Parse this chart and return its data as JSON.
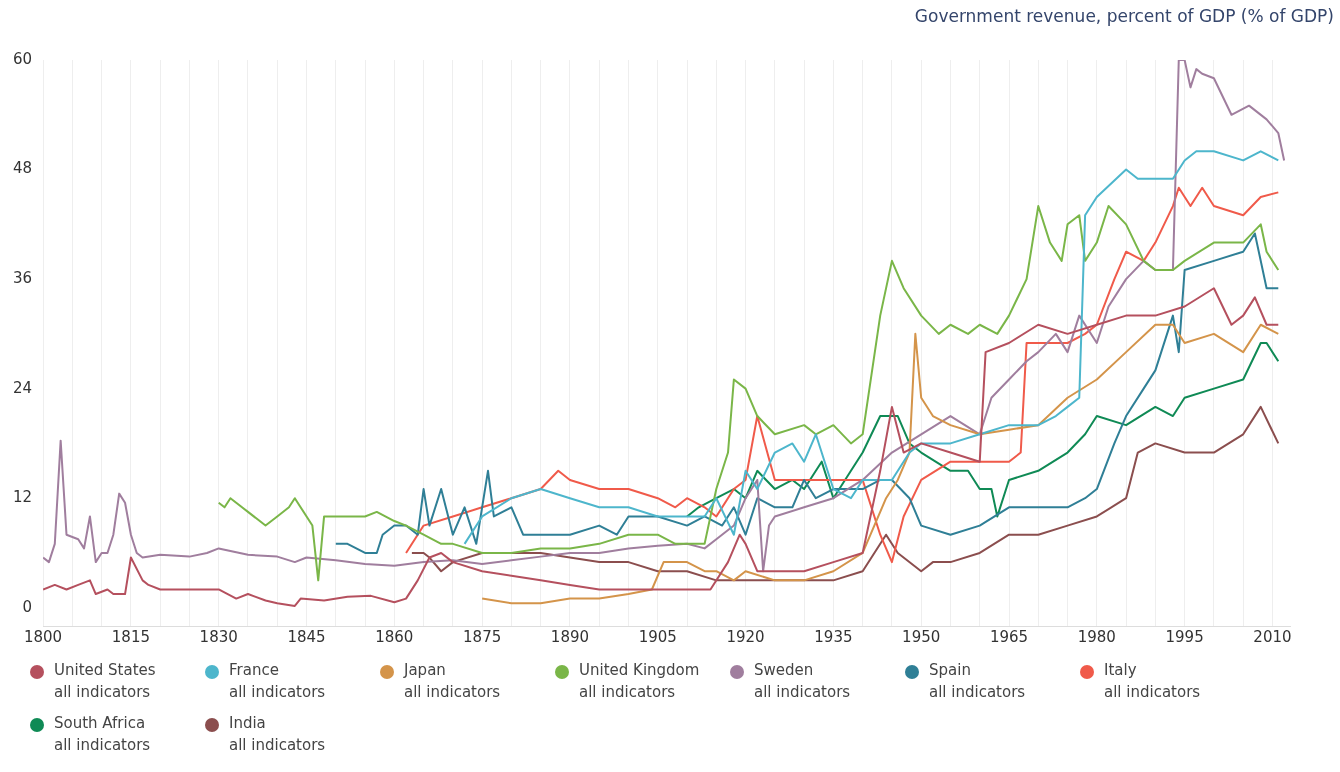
{
  "chart_data": {
    "type": "line",
    "title": "Government revenue, percent of GDP (% of GDP)",
    "xlim": [
      1800,
      2013
    ],
    "ylim": [
      -2,
      60
    ],
    "xticks": [
      1800,
      {
        "value": 1805,
        "label": null
      },
      {
        "value": 1810,
        "label": null
      },
      1815,
      {
        "value": 1820,
        "label": null
      },
      {
        "value": 1825,
        "label": null
      },
      1830,
      {
        "value": 1835,
        "label": null
      },
      {
        "value": 1840,
        "label": null
      },
      1845,
      {
        "value": 1850,
        "label": null
      },
      {
        "value": 1855,
        "label": null
      },
      1860,
      {
        "value": 1865,
        "label": null
      },
      {
        "value": 1870,
        "label": null
      },
      1875,
      {
        "value": 1880,
        "label": null
      },
      {
        "value": 1885,
        "label": null
      },
      1890,
      {
        "value": 1895,
        "label": null
      },
      {
        "value": 1900,
        "label": null
      },
      1905,
      {
        "value": 1910,
        "label": null
      },
      {
        "value": 1915,
        "label": null
      },
      1920,
      {
        "value": 1925,
        "label": null
      },
      {
        "value": 1930,
        "label": null
      },
      1935,
      {
        "value": 1940,
        "label": null
      },
      {
        "value": 1945,
        "label": null
      },
      1950,
      {
        "value": 1955,
        "label": null
      },
      {
        "value": 1960,
        "label": null
      },
      1965,
      {
        "value": 1970,
        "label": null
      },
      {
        "value": 1975,
        "label": null
      },
      1980,
      {
        "value": 1985,
        "label": null
      },
      {
        "value": 1990,
        "label": null
      },
      1995,
      {
        "value": 2000,
        "label": null
      },
      {
        "value": 2005,
        "label": null
      },
      2010
    ],
    "yticks": [
      0,
      12,
      24,
      36,
      48,
      60
    ],
    "grid": "x",
    "legend": "bottom",
    "series": [
      {
        "name": "United States\nall indicators",
        "color": "#b5505e",
        "x": [
          1800,
          1802,
          1804,
          1806,
          1808,
          1809,
          1811,
          1812,
          1814,
          1815,
          1817,
          1818,
          1820,
          1825,
          1830,
          1833,
          1835,
          1838,
          1840,
          1843,
          1844,
          1848,
          1852,
          1856,
          1860,
          1862,
          1864,
          1866,
          1868,
          1870,
          1875,
          1880,
          1885,
          1890,
          1895,
          1900,
          1905,
          1910,
          1914,
          1917,
          1919,
          1920,
          1922,
          1925,
          1930,
          1935,
          1940,
          1943,
          1945,
          1947,
          1950,
          1955,
          1960,
          1961,
          1965,
          1970,
          1975,
          1980,
          1985,
          1990,
          1995,
          2000,
          2003,
          2005,
          2007,
          2009,
          2011
        ],
        "values": [
          2,
          2.5,
          2,
          2.5,
          3,
          1.5,
          2,
          1.5,
          1.5,
          5.5,
          3,
          2.5,
          2,
          2,
          2,
          1,
          1.5,
          0.8,
          0.5,
          0.2,
          1,
          0.8,
          1.2,
          1.3,
          0.6,
          1,
          3,
          5.5,
          6,
          5,
          4,
          3.5,
          3,
          2.5,
          2,
          2,
          2,
          2,
          2,
          5,
          8,
          7,
          4,
          4,
          4,
          5,
          6,
          15,
          22,
          17,
          18,
          17,
          16,
          28,
          29,
          31,
          30,
          31,
          32,
          32,
          33,
          35,
          31,
          32,
          34,
          31,
          31
        ]
      },
      {
        "name": "France\nall indicators",
        "color": "#4db6cc",
        "x": [
          1872,
          1875,
          1880,
          1885,
          1890,
          1895,
          1900,
          1905,
          1910,
          1913,
          1915,
          1918,
          1920,
          1922,
          1925,
          1928,
          1930,
          1932,
          1935,
          1938,
          1940,
          1945,
          1948,
          1950,
          1955,
          1960,
          1965,
          1970,
          1973,
          1975,
          1977,
          1978,
          1980,
          1985,
          1987,
          1990,
          1993,
          1995,
          1997,
          2000,
          2005,
          2008,
          2011
        ],
        "values": [
          7,
          10,
          12,
          13,
          12,
          11,
          11,
          10,
          10,
          10,
          12,
          8,
          15,
          13,
          17,
          18,
          16,
          19,
          13,
          12,
          14,
          14,
          17,
          18,
          18,
          19,
          20,
          20,
          21,
          22,
          23,
          43,
          45,
          48,
          47,
          47,
          47,
          49,
          50,
          50,
          49,
          50,
          49
        ]
      },
      {
        "name": "Japan\nall indicators",
        "color": "#d4944a",
        "x": [
          1875,
          1880,
          1885,
          1890,
          1895,
          1900,
          1904,
          1906,
          1910,
          1913,
          1915,
          1918,
          1920,
          1925,
          1930,
          1935,
          1940,
          1944,
          1946,
          1948,
          1949,
          1950,
          1952,
          1955,
          1960,
          1965,
          1970,
          1975,
          1980,
          1985,
          1990,
          1993,
          1995,
          2000,
          2005,
          2008,
          2011
        ],
        "values": [
          1,
          0.5,
          0.5,
          1,
          1,
          1.5,
          2,
          5,
          5,
          4,
          4,
          3,
          4,
          3,
          3,
          4,
          6,
          12,
          14,
          17,
          30,
          23,
          21,
          20,
          19,
          19.5,
          20,
          23,
          25,
          28,
          31,
          31,
          29,
          30,
          28,
          31,
          30
        ]
      },
      {
        "name": "United Kingdom\nall indicators",
        "color": "#7ab648",
        "x": [
          1830,
          1831,
          1832,
          1835,
          1838,
          1840,
          1842,
          1843,
          1846,
          1847,
          1848,
          1850,
          1852,
          1855,
          1857,
          1860,
          1862,
          1865,
          1868,
          1870,
          1875,
          1880,
          1885,
          1890,
          1895,
          1900,
          1905,
          1908,
          1910,
          1913,
          1915,
          1917,
          1918,
          1920,
          1922,
          1925,
          1930,
          1932,
          1935,
          1938,
          1940,
          1943,
          1945,
          1947,
          1950,
          1953,
          1955,
          1958,
          1960,
          1963,
          1965,
          1968,
          1970,
          1972,
          1974,
          1975,
          1977,
          1978,
          1980,
          1982,
          1985,
          1988,
          1990,
          1993,
          1995,
          2000,
          2005,
          2008,
          2009,
          2011
        ],
        "values": [
          11.5,
          11,
          12,
          10.5,
          9,
          10,
          11,
          12,
          9,
          3,
          10,
          10,
          10,
          10,
          10.5,
          9.5,
          9,
          8,
          7,
          7,
          6,
          6,
          6.5,
          6.5,
          7,
          8,
          8,
          7,
          7,
          7,
          13,
          17,
          25,
          24,
          21,
          19,
          20,
          19,
          20,
          18,
          19,
          32,
          38,
          35,
          32,
          30,
          31,
          30,
          31,
          30,
          32,
          36,
          44,
          40,
          38,
          42,
          43,
          38,
          40,
          44,
          42,
          38,
          37,
          37,
          38,
          40,
          40,
          42,
          39,
          37
        ]
      },
      {
        "name": "Sweden\nall indicators",
        "color": "#a07e9e",
        "x": [
          1800,
          1801,
          1802,
          1803,
          1804,
          1806,
          1807,
          1808,
          1809,
          1810,
          1811,
          1812,
          1813,
          1814,
          1815,
          1816,
          1817,
          1820,
          1825,
          1828,
          1830,
          1835,
          1840,
          1843,
          1845,
          1850,
          1855,
          1860,
          1865,
          1870,
          1875,
          1880,
          1885,
          1890,
          1895,
          1900,
          1905,
          1910,
          1913,
          1915,
          1918,
          1920,
          1922,
          1923,
          1924,
          1925,
          1930,
          1935,
          1940,
          1945,
          1950,
          1955,
          1960,
          1962,
          1965,
          1968,
          1970,
          1973,
          1975,
          1977,
          1980,
          1982,
          1985,
          1988,
          1990,
          1993,
          1994,
          1995,
          1996,
          1997,
          1998,
          2000,
          2003,
          2006,
          2009,
          2011,
          2012
        ],
        "values": [
          5.5,
          5,
          7,
          18.3,
          8,
          7.5,
          6.5,
          10,
          5,
          6,
          6,
          8,
          12.5,
          11.5,
          8,
          6,
          5.5,
          5.8,
          5.6,
          6,
          6.5,
          5.8,
          5.6,
          5,
          5.5,
          5.2,
          4.8,
          4.6,
          5,
          5.2,
          4.8,
          5.2,
          5.6,
          6,
          6,
          6.5,
          6.8,
          7,
          6.5,
          7.5,
          9,
          12,
          14,
          4,
          9,
          10,
          11,
          12,
          14,
          17,
          19,
          21,
          19,
          23,
          25,
          27,
          28,
          30,
          28,
          32,
          29,
          33,
          36,
          38,
          37,
          37,
          60,
          60,
          57,
          59,
          58.5,
          58,
          54,
          55,
          53.5,
          52,
          49
        ]
      },
      {
        "name": "Spain\nall indicators",
        "color": "#2f7f96",
        "x": [
          1850,
          1852,
          1855,
          1857,
          1858,
          1860,
          1862,
          1864,
          1865,
          1866,
          1868,
          1870,
          1872,
          1874,
          1876,
          1877,
          1880,
          1882,
          1885,
          1890,
          1895,
          1898,
          1900,
          1905,
          1910,
          1913,
          1916,
          1918,
          1920,
          1922,
          1925,
          1928,
          1930,
          1932,
          1935,
          1940,
          1943,
          1945,
          1948,
          1950,
          1955,
          1960,
          1965,
          1970,
          1975,
          1978,
          1980,
          1983,
          1985,
          1988,
          1990,
          1993,
          1994,
          1995,
          2000,
          2005,
          2007,
          2009,
          2011
        ],
        "values": [
          7,
          7,
          6,
          6,
          8,
          9,
          9,
          8,
          13,
          9,
          13,
          8,
          11,
          7,
          15,
          10,
          11,
          8,
          8,
          8,
          9,
          8,
          10,
          10,
          9,
          10,
          9,
          11,
          8,
          12,
          11,
          11,
          14,
          12,
          13,
          13,
          14,
          14,
          12,
          9,
          8,
          9,
          11,
          11,
          11,
          12,
          13,
          18,
          21,
          24,
          26,
          32,
          28,
          37,
          38,
          39,
          41,
          35,
          35
        ]
      },
      {
        "name": "Italy\nall indicators",
        "color": "#f05a4a",
        "x": [
          1862,
          1865,
          1870,
          1875,
          1880,
          1885,
          1888,
          1890,
          1895,
          1900,
          1905,
          1908,
          1910,
          1913,
          1915,
          1918,
          1920,
          1922,
          1925,
          1930,
          1935,
          1940,
          1943,
          1945,
          1947,
          1950,
          1955,
          1960,
          1965,
          1967,
          1968,
          1970,
          1975,
          1978,
          1980,
          1983,
          1985,
          1988,
          1990,
          1993,
          1994,
          1996,
          1998,
          2000,
          2005,
          2008,
          2011
        ],
        "values": [
          6,
          9,
          10,
          11,
          12,
          13,
          15,
          14,
          13,
          13,
          12,
          11,
          12,
          11,
          10,
          13,
          14,
          21,
          14,
          14,
          14,
          14,
          8,
          5,
          10,
          14,
          16,
          16,
          16,
          17,
          29,
          29,
          29,
          30,
          31,
          36,
          39,
          38,
          40,
          44,
          46,
          44,
          46,
          44,
          43,
          45,
          45.5
        ]
      },
      {
        "name": "South Africa\nall indicators",
        "color": "#0f8a55",
        "x": [
          1910,
          1912,
          1915,
          1918,
          1920,
          1922,
          1925,
          1928,
          1930,
          1933,
          1935,
          1938,
          1940,
          1943,
          1946,
          1948,
          1950,
          1955,
          1958,
          1960,
          1962,
          1963,
          1965,
          1970,
          1975,
          1978,
          1980,
          1985,
          1990,
          1993,
          1995,
          2000,
          2005,
          2008,
          2009,
          2011
        ],
        "values": [
          10,
          11,
          12,
          13,
          12,
          15,
          13,
          14,
          13,
          16,
          12,
          15,
          17,
          21,
          21,
          18,
          17,
          15,
          15,
          13,
          13,
          10,
          14,
          15,
          17,
          19,
          21,
          20,
          22,
          21,
          23,
          24,
          25,
          29,
          29,
          27
        ]
      },
      {
        "name": "India\nall indicators",
        "color": "#8b4e4e",
        "x": [
          1863,
          1865,
          1866,
          1868,
          1870,
          1875,
          1880,
          1885,
          1890,
          1895,
          1900,
          1905,
          1910,
          1915,
          1920,
          1925,
          1930,
          1935,
          1940,
          1944,
          1946,
          1950,
          1952,
          1955,
          1960,
          1965,
          1970,
          1975,
          1980,
          1985,
          1987,
          1990,
          1995,
          2000,
          2005,
          2008,
          2011
        ],
        "values": [
          6,
          6,
          5.5,
          4,
          5,
          6,
          6,
          6,
          5.5,
          5,
          5,
          4,
          4,
          3,
          3,
          3,
          3,
          3,
          4,
          8,
          6,
          4,
          5,
          5,
          6,
          8,
          8,
          9,
          10,
          12,
          17,
          18,
          17,
          17,
          19,
          22,
          18
        ]
      }
    ]
  }
}
